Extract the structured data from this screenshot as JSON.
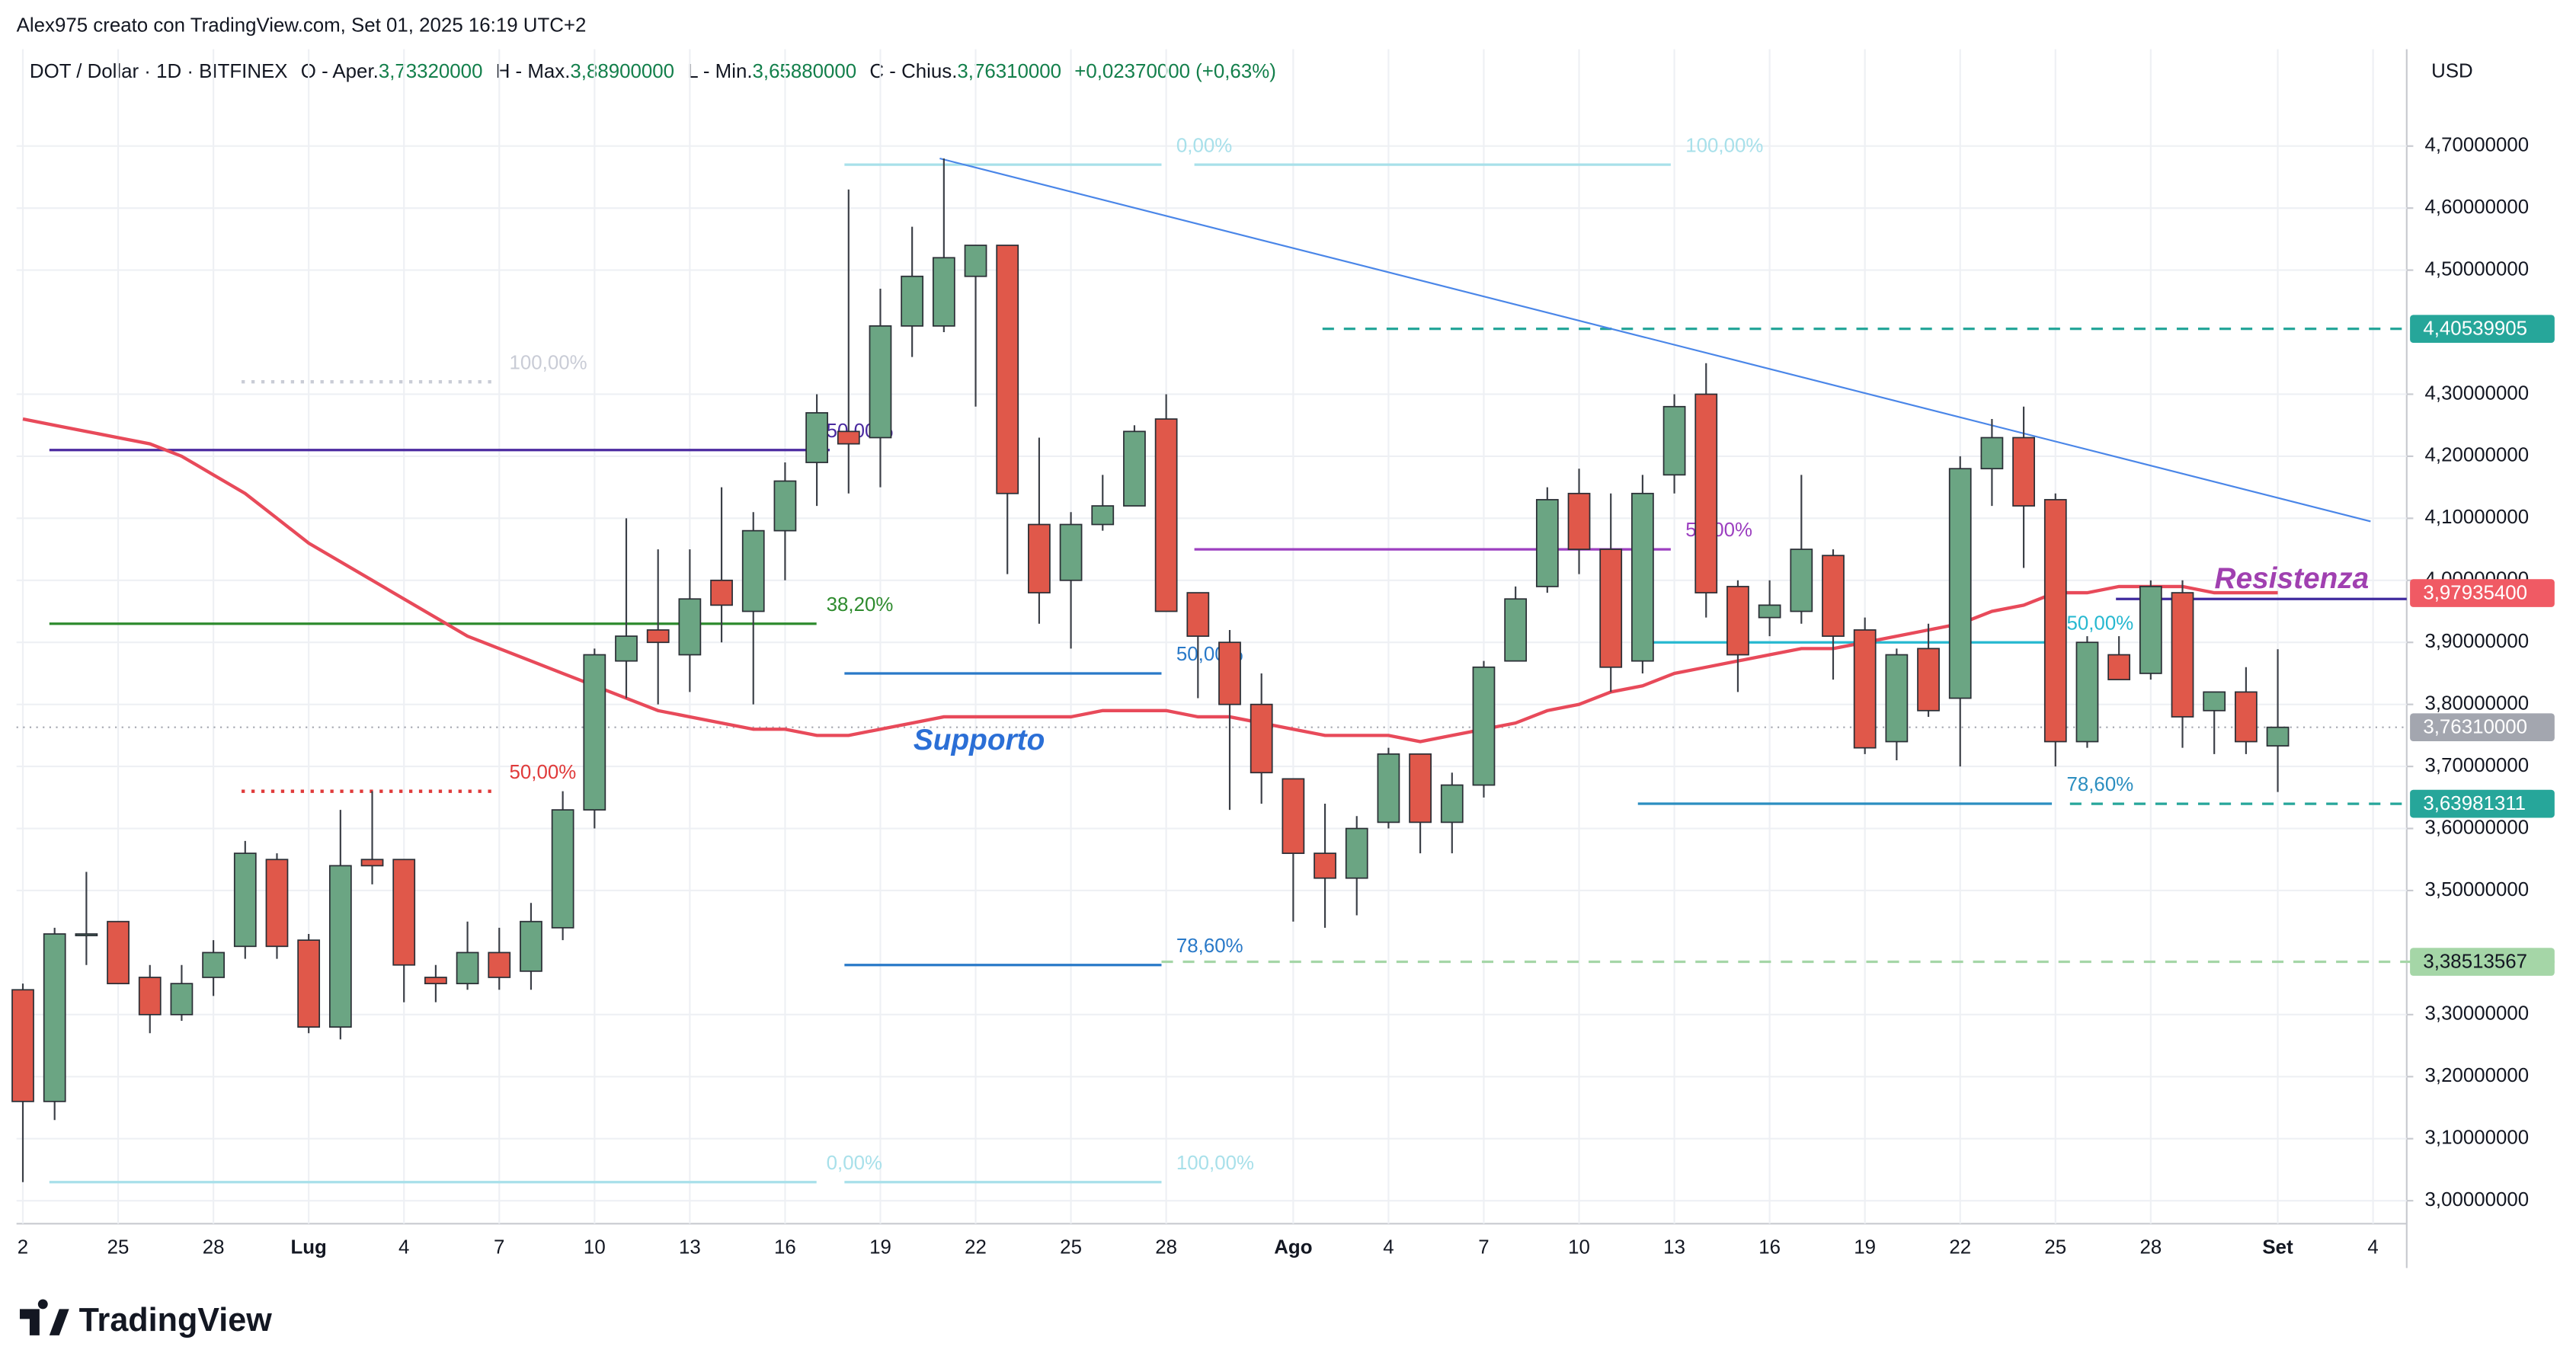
{
  "header": {
    "credit": "Alex975 creato con TradingView.com, Set 01, 2025 16:19 UTC+2",
    "symbol": "DOT / Dollar · 1D · BITFINEX",
    "o_label": "O - Aper.",
    "o_value": "3,73320000",
    "h_label": "H - Max.",
    "h_value": "3,88900000",
    "l_label": "L - Min.",
    "l_value": "3,65880000",
    "c_label": "C - Chius.",
    "c_value": "3,76310000",
    "change": "+0,02370000 (+0,63%)",
    "currency": "USD"
  },
  "footer": {
    "brand": "TradingView"
  },
  "chart_data": {
    "type": "candlestick",
    "open": [
      3.34,
      3.16,
      3.43,
      3.45,
      3.36,
      3.3,
      3.36,
      3.41,
      3.55,
      3.42,
      3.28,
      3.55,
      3.55,
      3.36,
      3.35,
      3.4,
      3.37,
      3.44,
      3.63,
      3.87,
      3.92,
      3.88,
      4.0,
      3.95,
      4.08,
      4.19,
      4.24,
      4.23,
      4.41,
      4.41,
      4.49,
      4.54,
      4.09,
      4.0,
      4.09,
      4.12,
      4.26,
      3.98,
      3.9,
      3.8,
      3.68,
      3.56,
      3.52,
      3.61,
      3.72,
      3.61,
      3.67,
      3.87,
      3.99,
      4.14,
      4.05,
      3.87,
      4.17,
      4.3,
      3.99,
      3.94,
      3.95,
      4.04,
      3.92,
      3.74,
      3.89,
      3.81,
      4.18,
      4.23,
      4.13,
      3.74,
      3.88,
      3.85,
      3.98,
      3.79,
      3.82,
      3.7332
    ],
    "high": [
      3.35,
      3.44,
      3.53,
      3.45,
      3.38,
      3.38,
      3.42,
      3.58,
      3.56,
      3.43,
      3.63,
      3.66,
      3.55,
      3.38,
      3.45,
      3.44,
      3.48,
      3.66,
      3.89,
      4.1,
      4.05,
      4.05,
      4.15,
      4.11,
      4.19,
      4.3,
      4.63,
      4.47,
      4.57,
      4.68,
      4.54,
      4.54,
      4.23,
      4.11,
      4.17,
      4.25,
      4.3,
      3.98,
      3.92,
      3.85,
      3.68,
      3.64,
      3.62,
      3.73,
      3.72,
      3.69,
      3.87,
      3.99,
      4.15,
      4.18,
      4.14,
      4.17,
      4.3,
      4.35,
      4.0,
      4.0,
      4.17,
      4.05,
      3.94,
      3.89,
      3.93,
      4.2,
      4.26,
      4.28,
      4.14,
      3.91,
      3.91,
      4.0,
      4.0,
      3.82,
      3.86,
      3.889
    ],
    "low": [
      3.03,
      3.13,
      3.38,
      3.35,
      3.27,
      3.29,
      3.33,
      3.39,
      3.39,
      3.27,
      3.26,
      3.51,
      3.32,
      3.32,
      3.34,
      3.34,
      3.34,
      3.42,
      3.6,
      3.81,
      3.8,
      3.82,
      3.9,
      3.8,
      4.0,
      4.12,
      4.14,
      4.15,
      4.36,
      4.4,
      4.28,
      4.01,
      3.93,
      3.89,
      4.08,
      4.12,
      3.95,
      3.81,
      3.63,
      3.64,
      3.45,
      3.44,
      3.46,
      3.6,
      3.56,
      3.56,
      3.65,
      3.87,
      3.98,
      4.01,
      3.82,
      3.85,
      4.14,
      3.94,
      3.82,
      3.91,
      3.93,
      3.84,
      3.72,
      3.71,
      3.78,
      3.7,
      4.12,
      4.02,
      3.7,
      3.73,
      3.84,
      3.84,
      3.73,
      3.72,
      3.72,
      3.6588
    ],
    "close": [
      3.16,
      3.43,
      3.43,
      3.35,
      3.3,
      3.35,
      3.4,
      3.56,
      3.41,
      3.28,
      3.54,
      3.54,
      3.38,
      3.35,
      3.4,
      3.36,
      3.45,
      3.63,
      3.88,
      3.91,
      3.9,
      3.97,
      3.96,
      4.08,
      4.16,
      4.27,
      4.22,
      4.41,
      4.49,
      4.52,
      4.54,
      4.14,
      3.98,
      4.09,
      4.12,
      4.24,
      3.95,
      3.91,
      3.8,
      3.69,
      3.56,
      3.52,
      3.6,
      3.72,
      3.61,
      3.67,
      3.86,
      3.97,
      4.13,
      4.05,
      3.86,
      4.14,
      4.28,
      3.98,
      3.88,
      3.96,
      4.05,
      3.91,
      3.73,
      3.88,
      3.79,
      4.18,
      4.23,
      4.12,
      3.74,
      3.9,
      3.84,
      3.99,
      3.78,
      3.82,
      3.74,
      3.7631
    ],
    "up_color": "#6ba583",
    "down_color": "#e0584a",
    "ma": {
      "color": "#e84a5a",
      "values": [
        4.26,
        4.25,
        4.24,
        4.23,
        4.22,
        4.2,
        4.17,
        4.14,
        4.1,
        4.06,
        4.03,
        4.0,
        3.97,
        3.94,
        3.91,
        3.89,
        3.87,
        3.85,
        3.83,
        3.81,
        3.79,
        3.78,
        3.77,
        3.76,
        3.76,
        3.75,
        3.75,
        3.76,
        3.77,
        3.78,
        3.78,
        3.78,
        3.78,
        3.78,
        3.79,
        3.79,
        3.79,
        3.78,
        3.78,
        3.77,
        3.76,
        3.75,
        3.75,
        3.75,
        3.74,
        3.75,
        3.76,
        3.77,
        3.79,
        3.8,
        3.82,
        3.83,
        3.85,
        3.86,
        3.87,
        3.88,
        3.89,
        3.89,
        3.9,
        3.91,
        3.92,
        3.93,
        3.95,
        3.96,
        3.98,
        3.98,
        3.99,
        3.99,
        3.99,
        3.98,
        3.98,
        3.98
      ]
    },
    "xlim": [
      -0.2,
      75.06
    ],
    "xticks": [
      {
        "value": 0,
        "label": "2"
      },
      {
        "value": 3,
        "label": "25"
      },
      {
        "value": 6,
        "label": "28"
      },
      {
        "value": 9,
        "label": "Lug"
      },
      {
        "value": 12,
        "label": "4"
      },
      {
        "value": 15,
        "label": "7"
      },
      {
        "value": 18,
        "label": "10"
      },
      {
        "value": 21,
        "label": "13"
      },
      {
        "value": 24,
        "label": "16"
      },
      {
        "value": 27,
        "label": "19"
      },
      {
        "value": 30,
        "label": "22"
      },
      {
        "value": 33,
        "label": "25"
      },
      {
        "value": 36,
        "label": "28"
      },
      {
        "value": 40,
        "label": "Ago"
      },
      {
        "value": 43,
        "label": "4"
      },
      {
        "value": 46,
        "label": "7"
      },
      {
        "value": 49,
        "label": "10"
      },
      {
        "value": 52,
        "label": "13"
      },
      {
        "value": 55,
        "label": "16"
      },
      {
        "value": 58,
        "label": "19"
      },
      {
        "value": 61,
        "label": "22"
      },
      {
        "value": 64,
        "label": "25"
      },
      {
        "value": 67,
        "label": "28"
      },
      {
        "value": 71,
        "label": "Set"
      },
      {
        "value": 74,
        "label": "4"
      }
    ],
    "ylim": [
      2.963,
      4.856
    ],
    "yticks": [
      {
        "value": 4.7,
        "label": "4,70000000"
      },
      {
        "value": 4.6,
        "label": "4,60000000"
      },
      {
        "value": 4.5,
        "label": "4,50000000"
      },
      {
        "value": 4.3,
        "label": "4,30000000"
      },
      {
        "value": 4.2,
        "label": "4,20000000"
      },
      {
        "value": 4.1,
        "label": "4,10000000"
      },
      {
        "value": 4.0,
        "label": "4,00000000"
      },
      {
        "value": 3.9,
        "label": "3,90000000"
      },
      {
        "value": 3.8,
        "label": "3,80000000"
      },
      {
        "value": 3.7,
        "label": "3,70000000"
      },
      {
        "value": 3.6,
        "label": "3,60000000"
      },
      {
        "value": 3.5,
        "label": "3,50000000"
      },
      {
        "value": 3.3,
        "label": "3,30000000"
      },
      {
        "value": 3.2,
        "label": "3,20000000"
      },
      {
        "value": 3.1,
        "label": "3,10000000"
      },
      {
        "value": 3.0,
        "label": "3,00000000"
      }
    ],
    "grid": true,
    "levels": [
      {
        "value": 4.32,
        "label": "100,00%",
        "color": "#c9ccd6"
      },
      {
        "value": 3.66,
        "label": "50,00%",
        "color": "#e03a3a"
      },
      {
        "value": 4.21,
        "label": "50,00%",
        "color": "#4b2aa0"
      },
      {
        "value": 3.93,
        "label": "38,20%",
        "color": "#2e8b2e"
      },
      {
        "value": 3.03,
        "label": "0,00%",
        "color": "#a8e0ea"
      },
      {
        "value": 4.67,
        "label": "0,00%",
        "color": "#a8e0ea"
      },
      {
        "value": 4.67,
        "label": "100,00%",
        "color": "#a8e0ea"
      },
      {
        "value": 3.85,
        "label": "50,00%",
        "color": "#2979c8"
      },
      {
        "value": 3.38,
        "label": "78,60%",
        "color": "#2979c8"
      },
      {
        "value": 3.03,
        "label": "100,00%",
        "color": "#a8e0ea"
      },
      {
        "value": 4.05,
        "label": "50,00%",
        "color": "#9c3fc0"
      },
      {
        "value": 3.9,
        "label": "50,00%",
        "color": "#26b8d0"
      },
      {
        "value": 3.64,
        "label": "78,60%",
        "color": "#2b8ec0"
      }
    ],
    "resistance_line": {
      "value": 3.97,
      "color": "#3f2a9e"
    },
    "trendline": {
      "values": [
        4.68,
        4.095
      ],
      "color": "#4a86e8"
    },
    "annotations": [
      {
        "text": "Supporto",
        "value": 3.74,
        "color": "#2b6fd6"
      },
      {
        "text": "Resistenza",
        "value": 4.0,
        "color": "#a040b0"
      }
    ],
    "price_tags": [
      {
        "value": 4.40539905,
        "label": "4,40539905",
        "color": "#26a69a"
      },
      {
        "value": 3.979354,
        "label": "3,97935400",
        "color": "#f05a64"
      },
      {
        "value": 3.7631,
        "label": "3,76310000",
        "color": "#a3a6af"
      },
      {
        "value": 3.63981311,
        "label": "3,63981311",
        "color": "#26a69a"
      },
      {
        "value": 3.38513567,
        "label": "3,38513567",
        "color": "#a5d6a7"
      }
    ]
  }
}
